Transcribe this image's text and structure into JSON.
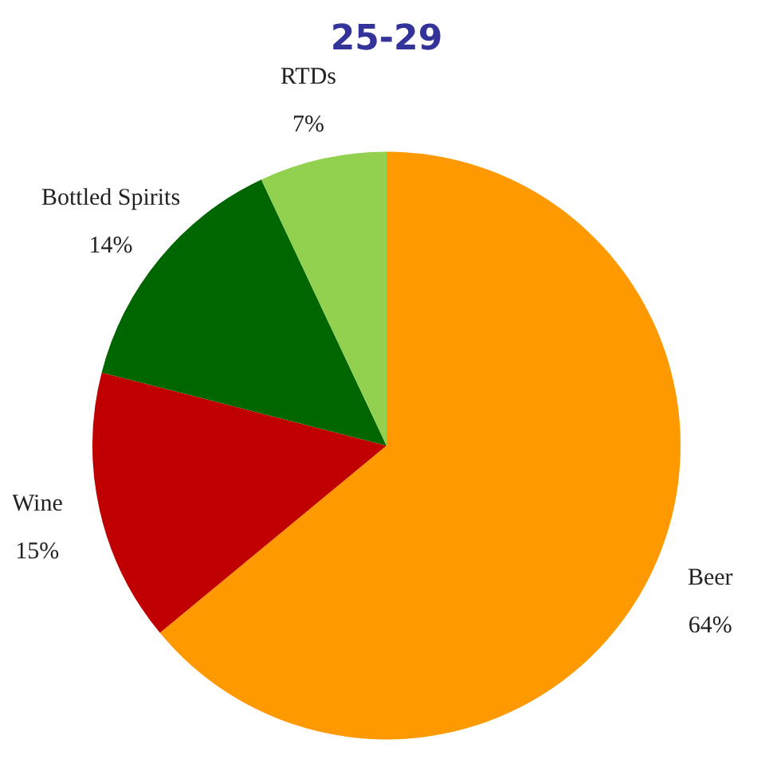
{
  "chart_data": {
    "type": "pie",
    "title": "25-29",
    "categories": [
      "Beer",
      "Wine",
      "Bottled Spirits",
      "RTDs"
    ],
    "values": [
      64,
      15,
      14,
      7
    ],
    "value_labels": [
      "64%",
      "15%",
      "14%",
      "7%"
    ],
    "colors": [
      "#ff9900",
      "#c00000",
      "#006600",
      "#92d050"
    ],
    "legend": false
  }
}
